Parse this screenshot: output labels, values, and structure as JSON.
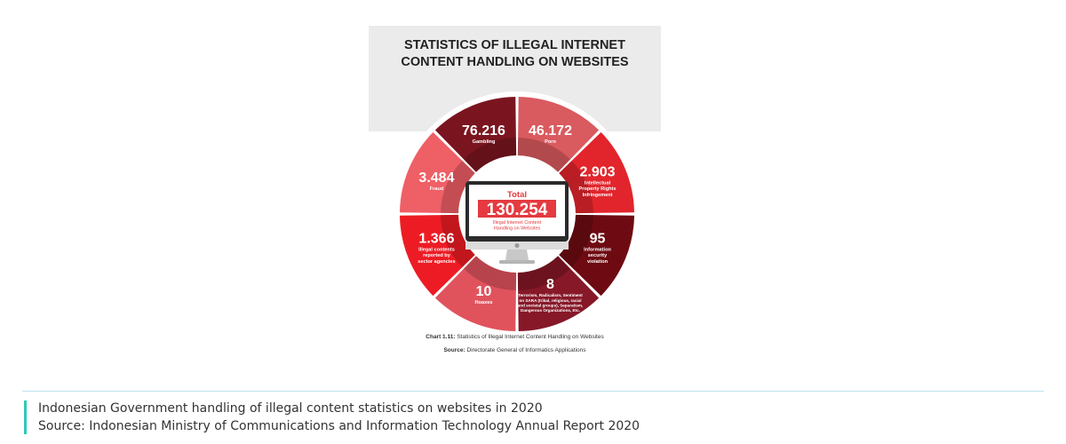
{
  "chart_data": {
    "type": "pie",
    "title": "STATISTICS OF ILLEGAL INTERNET CONTENT HANDLING ON WEBSITES",
    "title_lines": [
      "STATISTICS OF ILLEGAL INTERNET",
      "CONTENT HANDLING ON WEBSITES"
    ],
    "total": {
      "label": "Total",
      "value": "130.254",
      "sublabel_lines": [
        "Illegal Internet Content",
        "Handling on Websites"
      ]
    },
    "segments": [
      {
        "value_label": "76.216",
        "value": 76216,
        "category": "Gambling",
        "label_lines": [
          "Gambling"
        ],
        "color": "#7a1520"
      },
      {
        "value_label": "46.172",
        "value": 46172,
        "category": "Porn",
        "label_lines": [
          "Porn"
        ],
        "color": "#d95a5f"
      },
      {
        "value_label": "2.903",
        "value": 2903,
        "category": "Intellectual Property Rights Infringement",
        "label_lines": [
          "Intellectual",
          "Property Rights",
          "Infringement"
        ],
        "color": "#e2252c"
      },
      {
        "value_label": "95",
        "value": 95,
        "category": "Information security violation",
        "label_lines": [
          "Information",
          "security",
          "violation"
        ],
        "color": "#6e0b12"
      },
      {
        "value_label": "8",
        "value": 8,
        "category": "Terrorism, Radicalism, Sentiment on SARA (tribal, religious, racial and societal groups), Separatism, Dangerous Organizations, Etc.",
        "label_lines": [
          "Terrorism, Radicalism, Sentiment",
          "on SARA (tribal, religious, racial",
          "and societal groups), Separatism,",
          "Dangerous Organizations, Etc."
        ],
        "color": "#861828"
      },
      {
        "value_label": "10",
        "value": 10,
        "category": "Hoaxes",
        "label_lines": [
          "Hoaxes"
        ],
        "color": "#e0535d"
      },
      {
        "value_label": "1.366",
        "value": 1366,
        "category": "Illegal contents reported by sector agencies",
        "label_lines": [
          "Illegal contents",
          "reported by",
          "sector agencies"
        ],
        "color": "#ed1c24"
      },
      {
        "value_label": "3.484",
        "value": 3484,
        "category": "Fraud",
        "label_lines": [
          "Fraud"
        ],
        "color": "#ef5f66"
      }
    ],
    "caption_bold": "Chart 1.11:",
    "caption_text": " Statistics of Illegal Internet Content Handling on Websites",
    "source_bold": "Source:",
    "source_text": " Directorate General of Informatics Applications"
  },
  "footer": {
    "line1": "Indonesian Government handling of illegal content statistics on websites in 2020",
    "line2": "Source: Indonesian Ministry of Communications and Information Technology Annual Report 2020"
  },
  "colors": {
    "page_bg": "#ffffff",
    "card_top_bg": "#ebebeb",
    "accent": "#2ec9b6",
    "rule": "#bfe3f0",
    "total_box": "#e43a40"
  }
}
